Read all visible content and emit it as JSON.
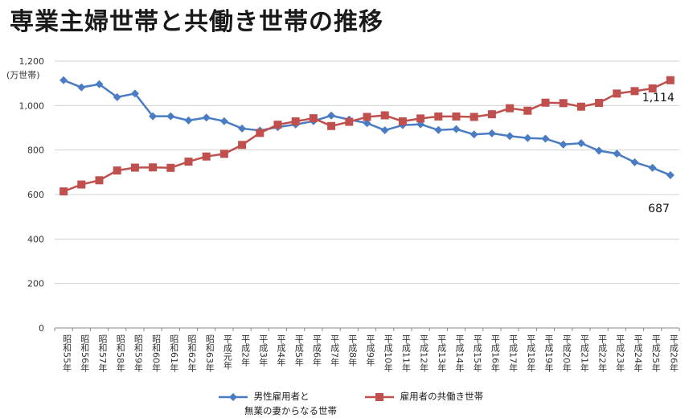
{
  "chart_data": {
    "type": "line",
    "title": "専業主婦世帯と共働き世帯の推移",
    "ylabel": "(万世帯)",
    "ylim": [
      0,
      1200
    ],
    "yticks": [
      "0",
      "200",
      "400",
      "600",
      "800",
      "1,000",
      "1,200"
    ],
    "grid": true,
    "legend_position": "bottom",
    "categories": [
      "昭和55年",
      "昭和56年",
      "昭和57年",
      "昭和58年",
      "昭和59年",
      "昭和60年",
      "昭和61年",
      "昭和62年",
      "昭和63年",
      "平成元年",
      "平成2年",
      "平成3年",
      "平成4年",
      "平成5年",
      "平成6年",
      "平成7年",
      "平成8年",
      "平成9年",
      "平成10年",
      "平成11年",
      "平成12年",
      "平成13年",
      "平成14年",
      "平成15年",
      "平成16年",
      "平成17年",
      "平成18年",
      "平成19年",
      "平成20年",
      "平成21年",
      "平成22年",
      "平成23年",
      "平成24年",
      "平成25年",
      "平成26年"
    ],
    "series": [
      {
        "name": "男性雇用者と\n無業の妻からなる世帯",
        "name_line1": "男性雇用者と",
        "name_line2": "無業の妻からなる世帯",
        "color": "#4a7cc4",
        "marker": "diamond",
        "values": [
          1114,
          1082,
          1096,
          1038,
          1054,
          952,
          952,
          933,
          946,
          930,
          897,
          888,
          903,
          915,
          930,
          955,
          937,
          921,
          889,
          912,
          916,
          890,
          894,
          870,
          875,
          863,
          854,
          851,
          825,
          831,
          797,
          784,
          745,
          720,
          687
        ],
        "end_label": "687"
      },
      {
        "name": "雇用者の共働き世帯",
        "color": "#c0504d",
        "marker": "square",
        "values": [
          614,
          645,
          664,
          708,
          721,
          722,
          720,
          748,
          771,
          783,
          823,
          877,
          914,
          929,
          943,
          908,
          927,
          949,
          956,
          929,
          942,
          951,
          951,
          949,
          961,
          988,
          977,
          1013,
          1011,
          995,
          1012,
          1054,
          1065,
          1077,
          1114
        ],
        "end_label": "1,114"
      }
    ]
  }
}
